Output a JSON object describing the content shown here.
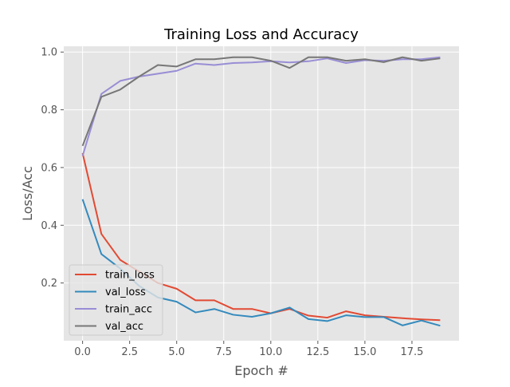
{
  "chart_data": {
    "type": "line",
    "title": "Training Loss and Accuracy",
    "xlabel": "Epoch #",
    "ylabel": "Loss/Acc",
    "xlim": [
      -1.0,
      20.0
    ],
    "ylim": [
      0.0,
      1.02
    ],
    "xticks": [
      0,
      2.5,
      5,
      7.5,
      10,
      12.5,
      15,
      17.5
    ],
    "xtick_labels": [
      "0.0",
      "2.5",
      "5.0",
      "7.5",
      "10.0",
      "12.5",
      "15.0",
      "17.5"
    ],
    "yticks": [
      0.2,
      0.4,
      0.6,
      0.8,
      1.0
    ],
    "ytick_labels": [
      "0.2",
      "0.4",
      "0.6",
      "0.8",
      "1.0"
    ],
    "grid": true,
    "style": "ggplot",
    "legend_position": "lower-left",
    "x": [
      0,
      1,
      2,
      3,
      4,
      5,
      6,
      7,
      8,
      9,
      10,
      11,
      12,
      13,
      14,
      15,
      16,
      17,
      18,
      19
    ],
    "series": [
      {
        "name": "train_loss",
        "color": "#E24A33",
        "values": [
          0.65,
          0.37,
          0.28,
          0.24,
          0.2,
          0.18,
          0.14,
          0.14,
          0.11,
          0.11,
          0.095,
          0.11,
          0.087,
          0.08,
          0.102,
          0.088,
          0.083,
          0.078,
          0.074,
          0.071
        ]
      },
      {
        "name": "val_loss",
        "color": "#348ABD",
        "values": [
          0.49,
          0.3,
          0.25,
          0.19,
          0.15,
          0.135,
          0.098,
          0.11,
          0.09,
          0.083,
          0.095,
          0.115,
          0.075,
          0.068,
          0.088,
          0.082,
          0.082,
          0.053,
          0.07,
          0.052
        ]
      },
      {
        "name": "train_acc",
        "color": "#988ED5",
        "values": [
          0.64,
          0.855,
          0.9,
          0.915,
          0.925,
          0.935,
          0.96,
          0.955,
          0.962,
          0.964,
          0.968,
          0.964,
          0.968,
          0.978,
          0.962,
          0.972,
          0.97,
          0.975,
          0.975,
          0.982
        ]
      },
      {
        "name": "val_acc",
        "color": "#777777",
        "values": [
          0.675,
          0.845,
          0.87,
          0.915,
          0.955,
          0.95,
          0.975,
          0.975,
          0.982,
          0.982,
          0.97,
          0.945,
          0.982,
          0.982,
          0.97,
          0.975,
          0.965,
          0.982,
          0.97,
          0.978
        ]
      }
    ]
  }
}
